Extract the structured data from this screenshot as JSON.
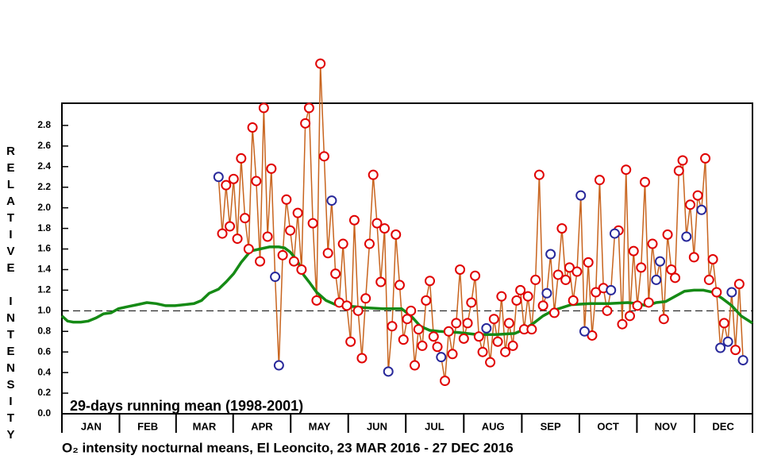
{
  "chart_data": {
    "type": "line",
    "title": "O₂ intensity nocturnal means, El Leoncito, 23 MAR 2016 - 27 DEC 2016",
    "ylabel": "RELATIVE INTENSITY",
    "ylim": [
      0,
      3.0
    ],
    "yticks": [
      {
        "value": 0,
        "label": "0.0"
      },
      0.2,
      0.4,
      0.6,
      0.8,
      {
        "value": 1,
        "label": "1.0"
      },
      1.2,
      1.4,
      1.6,
      1.8,
      {
        "value": 2,
        "label": "2.0"
      },
      2.2,
      2.4,
      2.6,
      2.8
    ],
    "xlim": [
      0,
      366
    ],
    "xticks": [
      {
        "value": 15.5,
        "label": "JAN"
      },
      {
        "value": 45.5,
        "label": "FEB"
      },
      {
        "value": 75.5,
        "label": "MAR"
      },
      {
        "value": 106,
        "label": "APR"
      },
      {
        "value": 136.5,
        "label": "MAY"
      },
      {
        "value": 167,
        "label": "JUN"
      },
      {
        "value": 197.5,
        "label": "JUL"
      },
      {
        "value": 228.5,
        "label": "AUG"
      },
      {
        "value": 259,
        "label": "SEP"
      },
      {
        "value": 289.5,
        "label": "OCT"
      },
      {
        "value": 320,
        "label": "NOV"
      },
      {
        "value": 350.5,
        "label": "DEC"
      }
    ],
    "hline": 1.0,
    "line_color": "#c8641e",
    "x": [
      83,
      85,
      87,
      89,
      91,
      93,
      95,
      97,
      99,
      101,
      103,
      105,
      107,
      109,
      111,
      113,
      115,
      117,
      119,
      121,
      123,
      125,
      127,
      129,
      131,
      133,
      135,
      137,
      139,
      141,
      143,
      145,
      147,
      149,
      151,
      153,
      155,
      157,
      159,
      161,
      163,
      165,
      167,
      169,
      171,
      173,
      175,
      177,
      179,
      181,
      183,
      185,
      187,
      189,
      191,
      193,
      195,
      197,
      199,
      201,
      203,
      205,
      207,
      209,
      211,
      213,
      215,
      217,
      219,
      221,
      223,
      225,
      227,
      229,
      231,
      233,
      235,
      237,
      239,
      241,
      243,
      245,
      247,
      249,
      251,
      253,
      255,
      257,
      259,
      261,
      263,
      265,
      267,
      269,
      271,
      273,
      275,
      277,
      279,
      281,
      283,
      285,
      287,
      289,
      291,
      293,
      295,
      297,
      299,
      301,
      303,
      305,
      307,
      309,
      311,
      313,
      315,
      317,
      319,
      321,
      323,
      325,
      327,
      329,
      331,
      333,
      335,
      337,
      339,
      341,
      343,
      345,
      347,
      349,
      351,
      353,
      355,
      357,
      359,
      361
    ],
    "series": [
      {
        "color": "#e00000",
        "values": [
          null,
          1.75,
          2.22,
          1.82,
          2.28,
          1.7,
          2.48,
          1.9,
          1.6,
          2.78,
          2.26,
          1.48,
          2.97,
          1.72,
          2.38,
          null,
          null,
          1.54,
          2.08,
          1.78,
          1.48,
          1.95,
          1.4,
          2.82,
          2.97,
          1.85,
          1.1,
          3.4,
          2.5,
          1.56,
          null,
          1.36,
          1.08,
          1.65,
          1.05,
          0.7,
          1.88,
          1.0,
          0.54,
          1.12,
          1.65,
          2.32,
          1.85,
          1.28,
          1.8,
          null,
          0.85,
          1.74,
          1.25,
          0.72,
          0.92,
          1.0,
          0.47,
          0.82,
          0.66,
          1.1,
          1.29,
          0.75,
          0.65,
          null,
          0.32,
          0.8,
          0.58,
          0.88,
          1.4,
          0.73,
          0.88,
          1.08,
          1.34,
          0.75,
          0.6,
          null,
          0.5,
          0.92,
          0.7,
          1.14,
          0.6,
          0.88,
          0.66,
          1.1,
          1.2,
          0.82,
          1.14,
          0.82,
          1.3,
          2.32,
          1.05,
          null,
          null,
          0.98,
          1.35,
          1.8,
          1.3,
          1.42,
          1.1,
          1.38,
          null,
          null,
          1.47,
          0.76,
          1.18,
          2.27,
          1.22,
          1.0,
          null,
          null,
          1.78,
          0.87,
          2.37,
          0.95,
          1.58,
          1.05,
          1.42,
          2.25,
          1.08,
          1.65,
          null,
          null,
          0.92,
          1.74,
          1.4,
          1.32,
          2.36,
          2.46,
          null,
          2.03,
          1.52,
          2.12,
          null,
          2.48,
          1.3,
          1.5,
          1.18,
          null,
          0.88,
          null,
          null,
          0.62,
          1.26,
          null
        ]
      },
      {
        "color": "#28289a",
        "values": [
          2.3,
          null,
          null,
          null,
          null,
          null,
          null,
          null,
          null,
          null,
          null,
          null,
          null,
          null,
          null,
          1.33,
          0.47,
          null,
          null,
          null,
          null,
          null,
          null,
          null,
          null,
          null,
          null,
          null,
          null,
          null,
          2.07,
          null,
          null,
          null,
          null,
          null,
          null,
          null,
          null,
          null,
          null,
          null,
          null,
          null,
          null,
          0.41,
          null,
          null,
          null,
          null,
          null,
          null,
          null,
          null,
          null,
          null,
          null,
          null,
          null,
          0.55,
          null,
          null,
          null,
          null,
          null,
          null,
          null,
          null,
          null,
          null,
          null,
          0.83,
          null,
          null,
          null,
          null,
          null,
          null,
          null,
          null,
          null,
          null,
          null,
          null,
          null,
          null,
          null,
          1.17,
          1.55,
          null,
          null,
          null,
          null,
          null,
          null,
          null,
          2.12,
          0.8,
          null,
          null,
          null,
          null,
          null,
          null,
          1.2,
          1.75,
          null,
          null,
          null,
          null,
          null,
          null,
          null,
          null,
          null,
          null,
          1.3,
          1.48,
          null,
          null,
          null,
          null,
          null,
          null,
          1.72,
          null,
          null,
          null,
          1.98,
          null,
          null,
          null,
          null,
          0.64,
          null,
          0.7,
          1.18,
          null,
          null,
          0.52
        ]
      },
      {
        "name": "29-days running mean (1998-2001)",
        "color": "#158a15",
        "x": [
          0,
          3,
          6,
          10,
          14,
          18,
          22,
          26,
          30,
          35,
          40,
          45,
          50,
          55,
          60,
          65,
          70,
          74,
          78,
          83,
          87,
          91,
          95,
          100,
          105,
          110,
          115,
          118,
          121,
          125,
          128,
          131,
          135,
          140,
          145,
          150,
          160,
          170,
          180,
          185,
          190,
          195,
          200,
          210,
          220,
          230,
          240,
          245,
          250,
          255,
          260,
          265,
          270,
          280,
          290,
          300,
          305,
          310,
          315,
          320,
          325,
          330,
          335,
          340,
          345,
          350,
          355,
          360,
          366
        ],
        "values": [
          0.95,
          0.9,
          0.89,
          0.89,
          0.9,
          0.93,
          0.97,
          0.98,
          1.02,
          1.04,
          1.06,
          1.08,
          1.07,
          1.05,
          1.05,
          1.06,
          1.07,
          1.1,
          1.17,
          1.21,
          1.28,
          1.36,
          1.47,
          1.58,
          1.6,
          1.62,
          1.62,
          1.61,
          1.57,
          1.48,
          1.35,
          1.28,
          1.18,
          1.1,
          1.06,
          1.05,
          1.03,
          1.02,
          1.02,
          0.95,
          0.85,
          0.81,
          0.8,
          0.79,
          0.77,
          0.77,
          0.78,
          0.82,
          0.88,
          0.95,
          1.0,
          1.03,
          1.06,
          1.07,
          1.07,
          1.08,
          1.07,
          1.05,
          1.08,
          1.09,
          1.14,
          1.19,
          1.2,
          1.2,
          1.18,
          1.12,
          1.05,
          0.95,
          0.88
        ]
      }
    ]
  }
}
